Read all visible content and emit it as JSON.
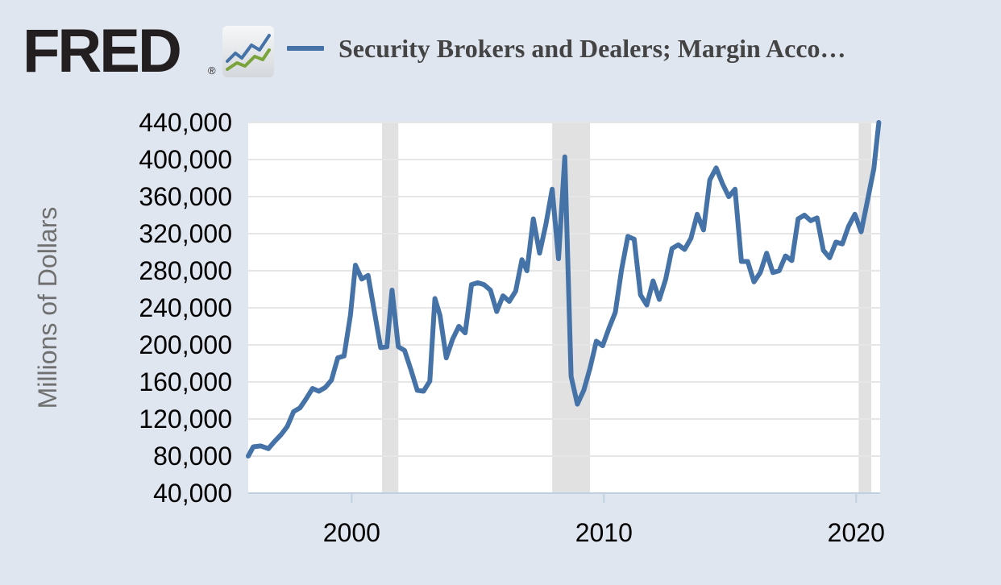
{
  "logo": {
    "text": "FRED",
    "registered": "®"
  },
  "legend": {
    "title": "Security Brokers and Dealers; Margin Acco…"
  },
  "colors": {
    "background": "#dfe6f0",
    "plot_background": "#ffffff",
    "series": "#4572a7",
    "recession_band": "#e1e1e1",
    "grid": "#e6e6e6"
  },
  "chart_data": {
    "type": "line",
    "title": "Security Brokers and Dealers; Margin Acco…",
    "xlabel": "",
    "ylabel": "Millions of Dollars",
    "xlim": [
      1995.9,
      2020.95
    ],
    "ylim": [
      40000,
      440000
    ],
    "y_ticks": [
      40000,
      80000,
      120000,
      160000,
      200000,
      240000,
      280000,
      320000,
      360000,
      400000,
      440000
    ],
    "y_tick_labels": [
      "40,000",
      "80,000",
      "120,000",
      "160,000",
      "200,000",
      "240,000",
      "280,000",
      "320,000",
      "360,000",
      "400,000",
      "440,000"
    ],
    "x_ticks": [
      2000,
      2010,
      2020
    ],
    "x_tick_labels": [
      "2000",
      "2010",
      "2020"
    ],
    "grid": true,
    "legend_position": "top",
    "recessions": [
      [
        2001.2,
        2001.85
      ],
      [
        2007.95,
        2009.45
      ],
      [
        2020.1,
        2020.6
      ]
    ],
    "series": [
      {
        "name": "Security Brokers and Dealers; Margin Acco…",
        "points": [
          [
            1995.9,
            80000
          ],
          [
            1996.1,
            90000
          ],
          [
            1996.4,
            91000
          ],
          [
            1996.7,
            88000
          ],
          [
            1996.95,
            96000
          ],
          [
            1997.2,
            103000
          ],
          [
            1997.45,
            112000
          ],
          [
            1997.7,
            128000
          ],
          [
            1997.95,
            132000
          ],
          [
            1998.2,
            142000
          ],
          [
            1998.45,
            153000
          ],
          [
            1998.7,
            150000
          ],
          [
            1998.95,
            154000
          ],
          [
            1999.2,
            162000
          ],
          [
            1999.45,
            186000
          ],
          [
            1999.7,
            188000
          ],
          [
            1999.95,
            232000
          ],
          [
            2000.15,
            286000
          ],
          [
            2000.4,
            271000
          ],
          [
            2000.65,
            275000
          ],
          [
            2000.9,
            236000
          ],
          [
            2001.15,
            197000
          ],
          [
            2001.4,
            198000
          ],
          [
            2001.6,
            259000
          ],
          [
            2001.85,
            198000
          ],
          [
            2002.1,
            194000
          ],
          [
            2002.35,
            173000
          ],
          [
            2002.6,
            151000
          ],
          [
            2002.85,
            150000
          ],
          [
            2003.1,
            161000
          ],
          [
            2003.3,
            250000
          ],
          [
            2003.5,
            232000
          ],
          [
            2003.75,
            186000
          ],
          [
            2004.0,
            206000
          ],
          [
            2004.25,
            220000
          ],
          [
            2004.5,
            213000
          ],
          [
            2004.75,
            265000
          ],
          [
            2005.0,
            267000
          ],
          [
            2005.25,
            265000
          ],
          [
            2005.5,
            259000
          ],
          [
            2005.75,
            236000
          ],
          [
            2006.0,
            253000
          ],
          [
            2006.25,
            247000
          ],
          [
            2006.5,
            258000
          ],
          [
            2006.75,
            292000
          ],
          [
            2006.95,
            280000
          ],
          [
            2007.2,
            336000
          ],
          [
            2007.45,
            299000
          ],
          [
            2007.7,
            330000
          ],
          [
            2007.95,
            368000
          ],
          [
            2008.2,
            293000
          ],
          [
            2008.45,
            403000
          ],
          [
            2008.7,
            166000
          ],
          [
            2008.95,
            136000
          ],
          [
            2009.2,
            151000
          ],
          [
            2009.45,
            175000
          ],
          [
            2009.7,
            204000
          ],
          [
            2009.95,
            199000
          ],
          [
            2010.2,
            218000
          ],
          [
            2010.45,
            235000
          ],
          [
            2010.7,
            281000
          ],
          [
            2010.95,
            317000
          ],
          [
            2011.2,
            314000
          ],
          [
            2011.45,
            254000
          ],
          [
            2011.7,
            243000
          ],
          [
            2011.95,
            269000
          ],
          [
            2012.2,
            249000
          ],
          [
            2012.45,
            271000
          ],
          [
            2012.7,
            304000
          ],
          [
            2012.95,
            308000
          ],
          [
            2013.2,
            303000
          ],
          [
            2013.45,
            315000
          ],
          [
            2013.7,
            341000
          ],
          [
            2013.95,
            324000
          ],
          [
            2014.2,
            378000
          ],
          [
            2014.45,
            391000
          ],
          [
            2014.7,
            374000
          ],
          [
            2014.95,
            360000
          ],
          [
            2015.2,
            368000
          ],
          [
            2015.45,
            290000
          ],
          [
            2015.7,
            290000
          ],
          [
            2015.95,
            268000
          ],
          [
            2016.2,
            278000
          ],
          [
            2016.45,
            299000
          ],
          [
            2016.7,
            278000
          ],
          [
            2016.95,
            280000
          ],
          [
            2017.2,
            296000
          ],
          [
            2017.45,
            291000
          ],
          [
            2017.7,
            336000
          ],
          [
            2017.95,
            340000
          ],
          [
            2018.2,
            334000
          ],
          [
            2018.45,
            337000
          ],
          [
            2018.7,
            302000
          ],
          [
            2018.95,
            294000
          ],
          [
            2019.2,
            311000
          ],
          [
            2019.45,
            309000
          ],
          [
            2019.7,
            328000
          ],
          [
            2019.95,
            341000
          ],
          [
            2020.2,
            322000
          ],
          [
            2020.45,
            356000
          ],
          [
            2020.7,
            390000
          ],
          [
            2020.9,
            440000
          ]
        ]
      }
    ]
  }
}
